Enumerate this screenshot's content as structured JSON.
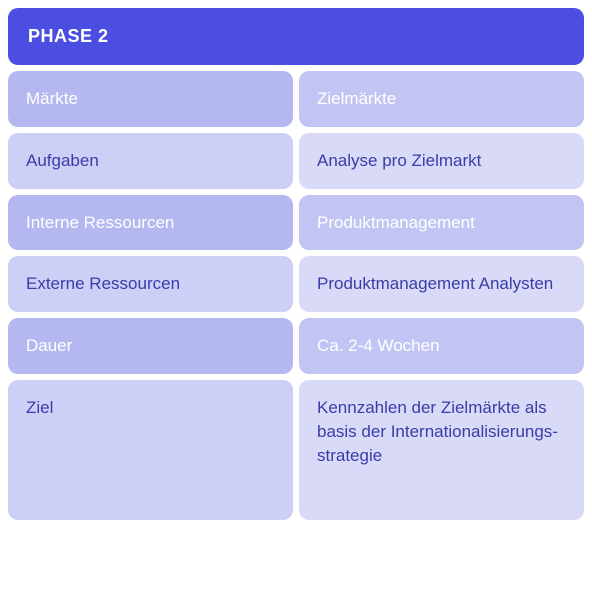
{
  "header": {
    "title": "PHASE 2",
    "background_color": "#4b4ee0",
    "text_color": "#ffffff",
    "font_size": 18,
    "font_weight": 700,
    "border_radius": 10
  },
  "table": {
    "type": "table",
    "columns": [
      "label",
      "value"
    ],
    "left_column_colors_alt": [
      "#b5b8f0",
      "#cdcff6"
    ],
    "right_column_colors_alt": [
      "#c2c5f3",
      "#d8daf8"
    ],
    "text_color": "#3a3ca8",
    "text_color_light": "#ffffff",
    "cell_border_radius": 10,
    "cell_font_size": 17,
    "cell_padding": "16px 18px",
    "gap": 6,
    "rows": [
      {
        "label": "Märkte",
        "value": "Zielmärkte",
        "left_bg": "#b5b8f0",
        "right_bg": "#c2c5f3",
        "left_text_color": "#ffffff",
        "right_text_color": "#ffffff"
      },
      {
        "label": "Aufgaben",
        "value": "Analyse pro Zielmarkt",
        "left_bg": "#cdcff6",
        "right_bg": "#d8daf8",
        "left_text_color": "#3a3ca8",
        "right_text_color": "#3a3ca8"
      },
      {
        "label": "Interne Ressourcen",
        "value": "Produktmanagement",
        "left_bg": "#b5b8f0",
        "right_bg": "#c2c5f3",
        "left_text_color": "#ffffff",
        "right_text_color": "#ffffff"
      },
      {
        "label": "Externe Ressourcen",
        "value": "Produktmanagement Analysten",
        "left_bg": "#cdcff6",
        "right_bg": "#d8daf8",
        "left_text_color": "#3a3ca8",
        "right_text_color": "#3a3ca8"
      },
      {
        "label": "Dauer",
        "value": "Ca. 2-4 Wochen",
        "left_bg": "#b5b8f0",
        "right_bg": "#c2c5f3",
        "left_text_color": "#ffffff",
        "right_text_color": "#ffffff"
      },
      {
        "label": "Ziel",
        "value": "Kennzahlen der Zielmärkte als basis der Internationalisierungs-strategie",
        "left_bg": "#cdcff6",
        "right_bg": "#d8daf8",
        "left_text_color": "#3a3ca8",
        "right_text_color": "#3a3ca8",
        "tall": true
      }
    ]
  },
  "layout": {
    "container_width": 576,
    "body_padding": 8,
    "background_color": "#ffffff"
  }
}
